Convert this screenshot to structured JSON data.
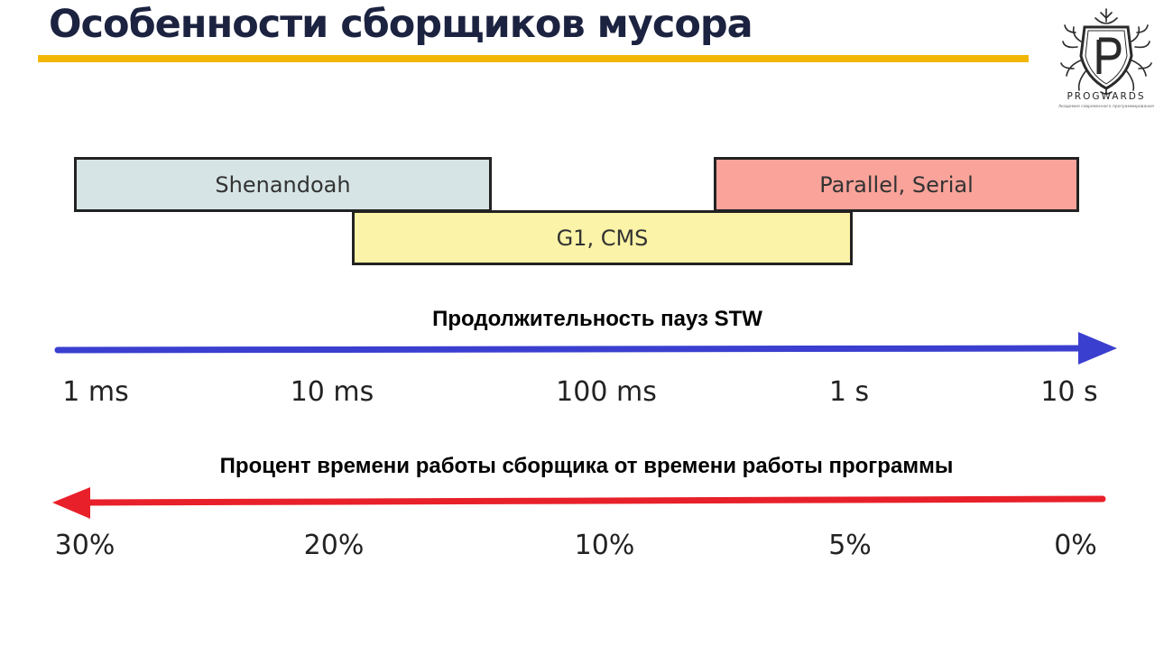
{
  "header": {
    "title": "Особенности сборщиков мусора",
    "accent_color": "#f2b705"
  },
  "logo": {
    "icon": "progwards-shield-tree-icon",
    "name": "PROGWARDS",
    "tagline": "Академия современного программирования"
  },
  "collectors": [
    {
      "label": "Shenandoah",
      "fill": "#d6e4e5",
      "row": 1
    },
    {
      "label": "G1, CMS",
      "fill": "#fbf3a7",
      "row": 2
    },
    {
      "label": "Parallel, Serial",
      "fill": "#f9a39a",
      "row": 1
    }
  ],
  "pause_axis": {
    "title": "Продолжительность пауз STW",
    "direction": "right",
    "color": "#3a3fd0",
    "ticks": [
      "1 ms",
      "10 ms",
      "100 ms",
      "1 s",
      "10 s"
    ]
  },
  "overhead_axis": {
    "title": "Процент времени работы сборщика от времени работы программы",
    "direction": "left",
    "color": "#e8202a",
    "ticks": [
      "30%",
      "20%",
      "10%",
      "5%",
      "0%"
    ]
  }
}
